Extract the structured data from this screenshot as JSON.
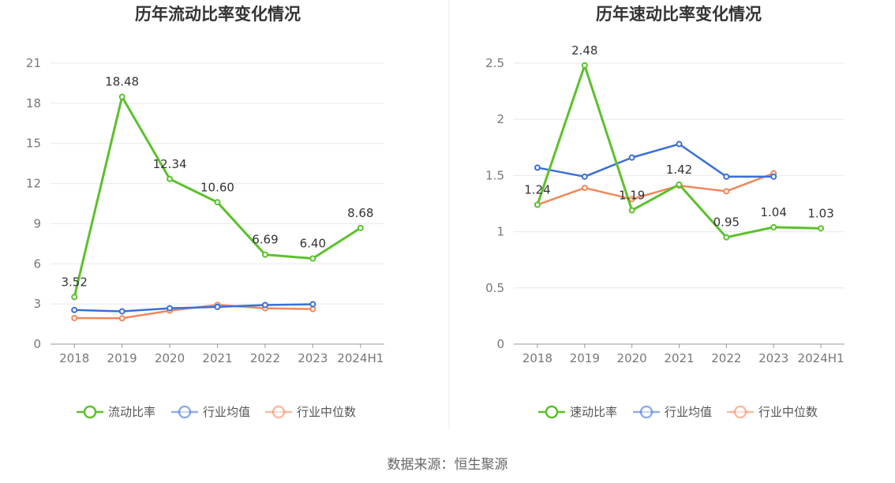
{
  "source_text": "数据来源：恒生聚源",
  "chart_data": [
    {
      "type": "line",
      "title": "历年流动比率变化情况",
      "categories": [
        "2018",
        "2019",
        "2020",
        "2021",
        "2022",
        "2023",
        "2024H1"
      ],
      "ylim": [
        0,
        21
      ],
      "yticks": [
        0,
        3,
        6,
        9,
        12,
        15,
        18,
        21
      ],
      "ytick_labels": [
        "0",
        "3",
        "6",
        "9",
        "12",
        "15",
        "18",
        "21"
      ],
      "xlabel": "",
      "ylabel": "",
      "grid": true,
      "legend_position": "bottom",
      "series": [
        {
          "name": "流动比率",
          "color": "#5bc12c",
          "values": [
            3.52,
            18.48,
            12.34,
            10.6,
            6.69,
            6.4,
            8.68
          ],
          "labels": [
            "3.52",
            "18.48",
            "12.34",
            "10.60",
            "6.69",
            "6.40",
            "8.68"
          ]
        },
        {
          "name": "行业均值",
          "color": "#3a6fd8",
          "values": [
            2.55,
            2.45,
            2.68,
            2.78,
            2.92,
            2.98,
            null
          ]
        },
        {
          "name": "行业中位数",
          "color": "#f0875a",
          "values": [
            1.95,
            1.93,
            2.5,
            2.93,
            2.68,
            2.62,
            null
          ]
        }
      ]
    },
    {
      "type": "line",
      "title": "历年速动比率变化情况",
      "categories": [
        "2018",
        "2019",
        "2020",
        "2021",
        "2022",
        "2023",
        "2024H1"
      ],
      "ylim": [
        0,
        2.5
      ],
      "yticks": [
        0,
        0.5,
        1,
        1.5,
        2,
        2.5
      ],
      "ytick_labels": [
        "0",
        "0.5",
        "1",
        "1.5",
        "2",
        "2.5"
      ],
      "xlabel": "",
      "ylabel": "",
      "grid": true,
      "legend_position": "bottom",
      "series": [
        {
          "name": "速动比率",
          "color": "#5bc12c",
          "values": [
            1.24,
            2.48,
            1.19,
            1.42,
            0.95,
            1.04,
            1.03
          ],
          "labels": [
            "1.24",
            "2.48",
            "1.19",
            "1.42",
            "0.95",
            "1.04",
            "1.03"
          ]
        },
        {
          "name": "行业均值",
          "color": "#3a6fd8",
          "values": [
            1.57,
            1.49,
            1.66,
            1.78,
            1.49,
            1.49,
            null
          ]
        },
        {
          "name": "行业中位数",
          "color": "#f0875a",
          "values": [
            1.24,
            1.39,
            1.29,
            1.41,
            1.36,
            1.52,
            null
          ]
        }
      ]
    }
  ]
}
